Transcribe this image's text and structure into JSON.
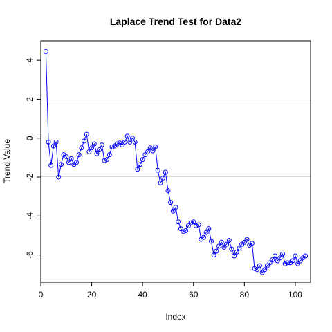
{
  "chart_data": {
    "type": "line",
    "title": "Laplace Trend Test for Data2",
    "xlabel": "Index",
    "ylabel": "Trend Value",
    "xlim": [
      0,
      106
    ],
    "ylim": [
      -7.4,
      5.0
    ],
    "x_ticks": [
      0,
      20,
      40,
      60,
      80,
      100
    ],
    "y_ticks": [
      -6,
      -4,
      -2,
      0,
      2,
      4
    ],
    "reference_lines": [
      1.96,
      -1.96
    ],
    "grid": false,
    "marker": "open-circle",
    "colors": {
      "series": "#0000ff",
      "reference": "#999999",
      "axis": "#000000"
    },
    "x": [
      2,
      3,
      4,
      5,
      6,
      7,
      8,
      9,
      10,
      11,
      12,
      13,
      14,
      15,
      16,
      17,
      18,
      19,
      20,
      21,
      22,
      23,
      24,
      25,
      26,
      27,
      28,
      29,
      30,
      31,
      32,
      33,
      34,
      35,
      36,
      37,
      38,
      39,
      40,
      41,
      42,
      43,
      44,
      45,
      46,
      47,
      48,
      49,
      50,
      51,
      52,
      53,
      54,
      55,
      56,
      57,
      58,
      59,
      60,
      61,
      62,
      63,
      64,
      65,
      66,
      67,
      68,
      69,
      70,
      71,
      72,
      73,
      74,
      75,
      76,
      77,
      78,
      79,
      80,
      81,
      82,
      83,
      84,
      85,
      86,
      87,
      88,
      89,
      90,
      91,
      92,
      93,
      94,
      95,
      96,
      97,
      98,
      99,
      100,
      101,
      102,
      103,
      104
    ],
    "y": [
      4.45,
      -0.2,
      -1.4,
      -0.4,
      -0.2,
      -2.0,
      -1.35,
      -0.85,
      -0.95,
      -1.25,
      -1.05,
      -1.35,
      -1.25,
      -0.85,
      -0.5,
      -0.15,
      0.2,
      -0.7,
      -0.5,
      -0.3,
      -0.8,
      -0.6,
      -0.35,
      -1.15,
      -1.1,
      -0.85,
      -0.45,
      -0.4,
      -0.3,
      -0.25,
      -0.35,
      -0.2,
      0.1,
      -0.2,
      0.0,
      -0.2,
      -1.6,
      -1.35,
      -1.1,
      -0.85,
      -0.7,
      -0.5,
      -0.65,
      -0.45,
      -1.65,
      -2.3,
      -2.05,
      -1.75,
      -2.7,
      -3.3,
      -3.75,
      -3.55,
      -4.3,
      -4.65,
      -4.8,
      -4.75,
      -4.5,
      -4.35,
      -4.3,
      -4.5,
      -4.45,
      -5.2,
      -5.1,
      -4.85,
      -4.65,
      -5.3,
      -6.0,
      -5.8,
      -5.55,
      -5.35,
      -5.6,
      -5.45,
      -5.25,
      -5.7,
      -6.05,
      -5.85,
      -5.65,
      -5.45,
      -5.35,
      -5.2,
      -5.5,
      -5.4,
      -6.7,
      -6.75,
      -6.55,
      -6.9,
      -6.75,
      -6.55,
      -6.4,
      -6.25,
      -6.05,
      -6.3,
      -6.15,
      -5.95,
      -6.45,
      -6.4,
      -6.4,
      -6.3,
      -6.05,
      -6.45,
      -6.3,
      -6.15,
      -6.05
    ]
  }
}
